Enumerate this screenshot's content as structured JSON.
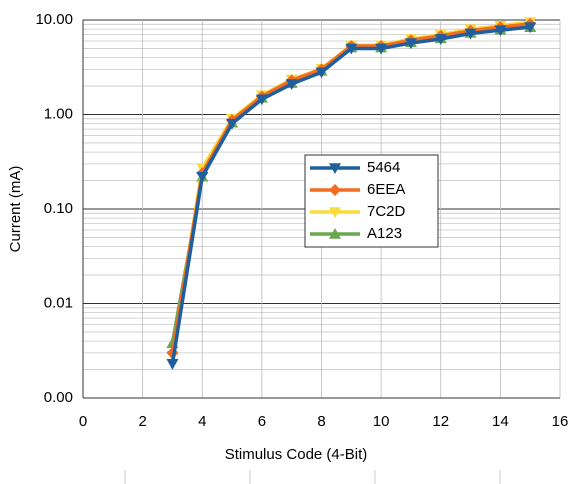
{
  "chart_data": {
    "type": "line",
    "x_label": "Stimulus Code (4-Bit)",
    "y_label": "Current  (mA)",
    "x": [
      3,
      4,
      5,
      6,
      7,
      8,
      9,
      10,
      11,
      12,
      13,
      14,
      15
    ],
    "series": [
      {
        "name": "5464",
        "color": "#1f5f9e",
        "marker": "triangle-down",
        "values": [
          0.0023,
          0.22,
          0.8,
          1.45,
          2.1,
          2.8,
          5.0,
          5.0,
          5.7,
          6.3,
          7.2,
          7.8,
          8.4
        ]
      },
      {
        "name": "6EEA",
        "color": "#f26b21",
        "marker": "diamond",
        "values": [
          0.003,
          0.24,
          0.87,
          1.55,
          2.3,
          3.0,
          5.3,
          5.3,
          6.1,
          6.8,
          7.7,
          8.4,
          9.1
        ]
      },
      {
        "name": "7C2D",
        "color": "#f7dc3c",
        "marker": "triangle-down",
        "values": [
          0.0028,
          0.27,
          0.9,
          1.6,
          2.35,
          3.05,
          5.4,
          5.4,
          6.3,
          7.0,
          8.0,
          8.7,
          9.5
        ]
      },
      {
        "name": "A123",
        "color": "#6aa84f",
        "marker": "triangle-up",
        "values": [
          0.0038,
          0.22,
          0.82,
          1.5,
          2.15,
          2.9,
          5.1,
          5.1,
          5.8,
          6.4,
          7.3,
          7.9,
          8.4
        ]
      }
    ],
    "xlim": [
      0,
      16
    ],
    "xticks": [
      0,
      2,
      4,
      6,
      8,
      10,
      12,
      14,
      16
    ],
    "ylim": [
      0.001,
      10
    ],
    "log_y": true,
    "grid": true,
    "minor_grid": true,
    "yticks": [
      {
        "value": 0.001,
        "label": "0.00"
      },
      {
        "value": 0.01,
        "label": "0.01"
      },
      {
        "value": 0.1,
        "label": "0.10"
      },
      {
        "value": 1,
        "label": "1.00"
      },
      {
        "value": 10,
        "label": "10.00"
      }
    ],
    "legend": "center"
  }
}
